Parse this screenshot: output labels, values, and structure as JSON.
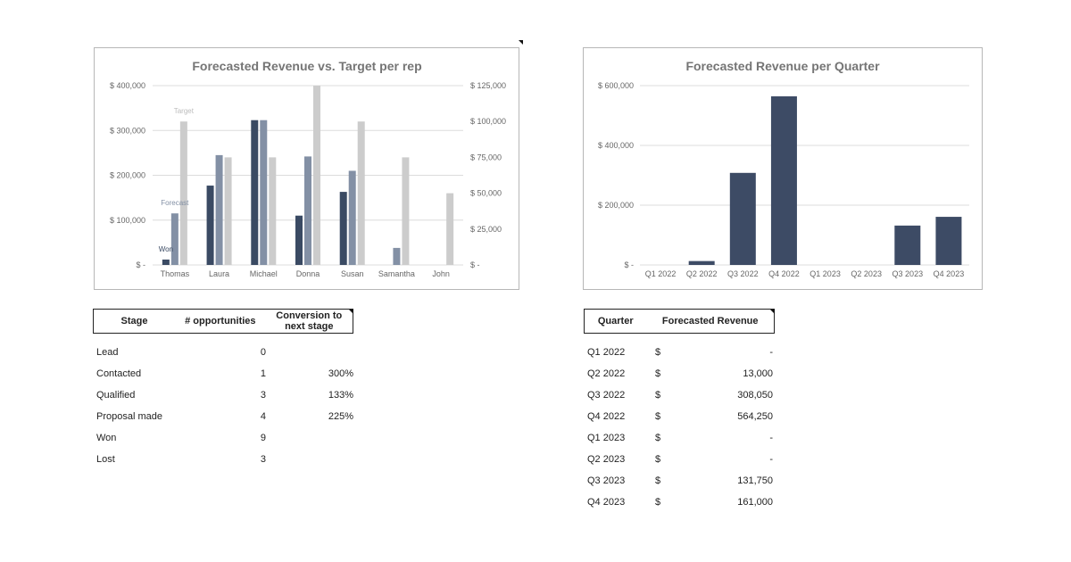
{
  "chart_data": [
    {
      "type": "bar",
      "title": "Forecasted Revenue vs. Target per rep",
      "categories": [
        "Thomas",
        "Laura",
        "Michael",
        "Donna",
        "Susan",
        "Samantha",
        "John"
      ],
      "series": [
        {
          "name": "Won",
          "axis": "left",
          "color": "#3a4a63",
          "values": [
            12000,
            177000,
            323000,
            110000,
            163000,
            0,
            0
          ]
        },
        {
          "name": "Forecast",
          "axis": "left",
          "color": "#8390a5",
          "values": [
            115000,
            245000,
            323000,
            242000,
            210000,
            38000,
            0
          ]
        },
        {
          "name": "Target",
          "axis": "right",
          "color": "#cccccc",
          "values": [
            100000,
            75000,
            75000,
            125000,
            100000,
            75000,
            50000
          ]
        }
      ],
      "left_axis": {
        "ylim": [
          0,
          400000
        ],
        "tick_labels": [
          "$ -",
          "$ 100,000",
          "$ 200,000",
          "$ 300,000",
          "$ 400,000"
        ]
      },
      "right_axis": {
        "ylim": [
          0,
          125000
        ],
        "tick_labels": [
          "$ -",
          "$ 25,000",
          "$ 50,000",
          "$ 75,000",
          "$ 100,000",
          "$ 125,000"
        ]
      },
      "grid": true,
      "series_labels_on_chart": true
    },
    {
      "type": "bar",
      "title": "Forecasted Revenue per Quarter",
      "categories": [
        "Q1 2022",
        "Q2 2022",
        "Q3 2022",
        "Q4 2022",
        "Q1 2023",
        "Q2 2023",
        "Q3 2023",
        "Q4 2023"
      ],
      "values": [
        0,
        13000,
        308050,
        564250,
        0,
        0,
        131750,
        161000
      ],
      "color": "#3d4b65",
      "ylim": [
        0,
        600000
      ],
      "tick_labels": [
        "$ -",
        "$ 200,000",
        "$ 400,000",
        "$ 600,000"
      ],
      "grid": true
    }
  ],
  "stage_table": {
    "headers": {
      "stage": "Stage",
      "count": "# opportunities",
      "conv_line1": "Conversion to",
      "conv_line2": "next stage"
    },
    "rows": [
      {
        "stage": "Lead",
        "count": "0",
        "conversion": ""
      },
      {
        "stage": "Contacted",
        "count": "1",
        "conversion": "300%"
      },
      {
        "stage": "Qualified",
        "count": "3",
        "conversion": "133%"
      },
      {
        "stage": "Proposal made",
        "count": "4",
        "conversion": "225%"
      },
      {
        "stage": "Won",
        "count": "9",
        "conversion": ""
      },
      {
        "stage": "Lost",
        "count": "3",
        "conversion": ""
      }
    ]
  },
  "quarter_table": {
    "headers": {
      "quarter": "Quarter",
      "revenue": "Forecasted Revenue"
    },
    "currency": "$",
    "rows": [
      {
        "quarter": "Q1 2022",
        "revenue": "-"
      },
      {
        "quarter": "Q2 2022",
        "revenue": "13,000"
      },
      {
        "quarter": "Q3 2022",
        "revenue": "308,050"
      },
      {
        "quarter": "Q4 2022",
        "revenue": "564,250"
      },
      {
        "quarter": "Q1 2023",
        "revenue": "-"
      },
      {
        "quarter": "Q2 2023",
        "revenue": "-"
      },
      {
        "quarter": "Q3 2023",
        "revenue": "131,750"
      },
      {
        "quarter": "Q4 2023",
        "revenue": "161,000"
      }
    ]
  }
}
